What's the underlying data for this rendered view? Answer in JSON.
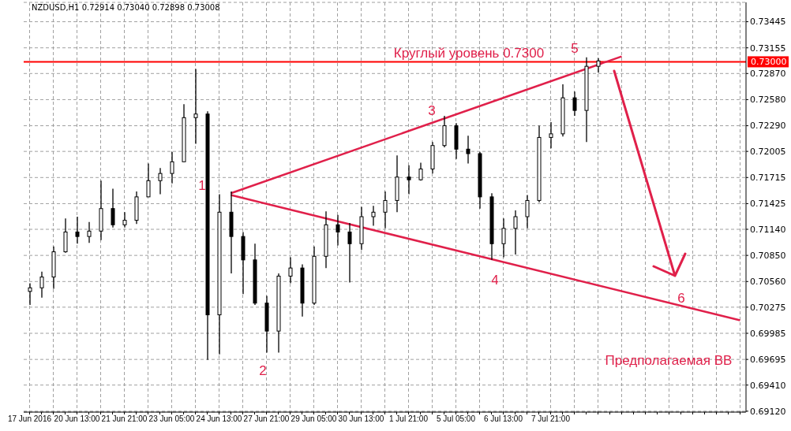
{
  "chart_data": {
    "type": "candlestick",
    "title": "NZDUSD,H1  0.72914 0.73040 0.72898 0.73008",
    "color": "#000000",
    "categories": [
      "17 Jun 2016",
      null,
      null,
      null,
      "20 Jun 13:00",
      null,
      null,
      null,
      "21 Jun 21:00",
      null,
      null,
      null,
      "23 Jun 05:00",
      null,
      null,
      null,
      "24 Jun 13:00",
      null,
      null,
      null,
      "27 Jun 21:00",
      null,
      null,
      null,
      "29 Jun 05:00",
      null,
      null,
      null,
      "30 Jun 13:00",
      null,
      null,
      null,
      "1 Jul 21:00",
      null,
      null,
      null,
      "5 Jul 05:00",
      null,
      null,
      null,
      "6 Jul 13:00",
      null,
      null,
      null,
      "7 Jul 21:00",
      null,
      null,
      null,
      null,
      null,
      null,
      null,
      null,
      null,
      null,
      null,
      null,
      null,
      null,
      null,
      null
    ],
    "ohlc": [
      [
        0.7045,
        0.7054,
        0.703,
        0.7049
      ],
      [
        0.7049,
        0.7067,
        0.7038,
        0.7061
      ],
      [
        0.7061,
        0.7095,
        0.7048,
        0.7089
      ],
      [
        0.7089,
        0.7126,
        0.7088,
        0.7111
      ],
      [
        0.7111,
        0.7128,
        0.7098,
        0.7106
      ],
      [
        0.7106,
        0.7122,
        0.7099,
        0.7112
      ],
      [
        0.7112,
        0.7168,
        0.7102,
        0.7137
      ],
      [
        0.7137,
        0.7159,
        0.7116,
        0.7119
      ],
      [
        0.7119,
        0.7133,
        0.7116,
        0.7124
      ],
      [
        0.7124,
        0.7156,
        0.712,
        0.715
      ],
      [
        0.715,
        0.7187,
        0.715,
        0.7168
      ],
      [
        0.7168,
        0.7182,
        0.7153,
        0.7176
      ],
      [
        0.7176,
        0.72,
        0.7165,
        0.7189
      ],
      [
        0.7189,
        0.7253,
        0.7189,
        0.7238
      ],
      [
        0.7238,
        0.7292,
        0.7209,
        0.7242
      ],
      [
        0.7242,
        0.7245,
        0.6969,
        0.7019
      ],
      [
        0.7019,
        0.7153,
        0.6975,
        0.7133
      ],
      [
        0.7133,
        0.7156,
        0.7065,
        0.7106
      ],
      [
        0.7106,
        0.7111,
        0.7042,
        0.708
      ],
      [
        0.708,
        0.7098,
        0.703,
        0.7032
      ],
      [
        0.7032,
        0.704,
        0.6977,
        0.7001
      ],
      [
        0.7001,
        0.7065,
        0.6977,
        0.7062
      ],
      [
        0.7062,
        0.7083,
        0.7054,
        0.7071
      ],
      [
        0.7071,
        0.7075,
        0.7017,
        0.7032
      ],
      [
        0.7032,
        0.7095,
        0.703,
        0.7084
      ],
      [
        0.7084,
        0.7134,
        0.7071,
        0.7119
      ],
      [
        0.7119,
        0.713,
        0.7096,
        0.7111
      ],
      [
        0.7111,
        0.7121,
        0.7055,
        0.7098
      ],
      [
        0.7098,
        0.7139,
        0.7091,
        0.7128
      ],
      [
        0.7128,
        0.714,
        0.7118,
        0.7133
      ],
      [
        0.7133,
        0.7156,
        0.7115,
        0.7146
      ],
      [
        0.7146,
        0.7196,
        0.7133,
        0.7172
      ],
      [
        0.7172,
        0.7185,
        0.7153,
        0.7169
      ],
      [
        0.7169,
        0.7188,
        0.7168,
        0.7181
      ],
      [
        0.7181,
        0.7211,
        0.7176,
        0.7207
      ],
      [
        0.7207,
        0.724,
        0.7205,
        0.7229
      ],
      [
        0.7229,
        0.7232,
        0.7192,
        0.7203
      ],
      [
        0.7203,
        0.7218,
        0.7187,
        0.7198
      ],
      [
        0.7198,
        0.72,
        0.7137,
        0.715
      ],
      [
        0.715,
        0.7154,
        0.708,
        0.7098
      ],
      [
        0.7098,
        0.7126,
        0.7083,
        0.7115
      ],
      [
        0.7115,
        0.7135,
        0.7086,
        0.7128
      ],
      [
        0.7128,
        0.7152,
        0.7115,
        0.7146
      ],
      [
        0.7146,
        0.7229,
        0.7144,
        0.7216
      ],
      [
        0.7216,
        0.7233,
        0.7204,
        0.722
      ],
      [
        0.722,
        0.7275,
        0.7217,
        0.726
      ],
      [
        0.726,
        0.7267,
        0.724,
        0.7246
      ],
      [
        0.7246,
        0.7305,
        0.7211,
        0.7295
      ],
      [
        0.7295,
        0.7304,
        0.7288,
        0.7301
      ],
      null,
      null,
      null,
      null,
      null,
      null,
      null,
      null,
      null,
      null,
      null,
      null
    ],
    "series": [
      {
        "type": "line",
        "color": "#e0204a",
        "values": [
          null,
          null,
          null,
          null,
          null,
          null,
          null,
          null,
          null,
          null,
          null,
          null,
          null,
          null,
          null,
          null,
          null,
          0.7154,
          null,
          null,
          null,
          null,
          null,
          null,
          null,
          null,
          null,
          null,
          null,
          null,
          null,
          null,
          null,
          null,
          null,
          null,
          null,
          null,
          null,
          null,
          null,
          null,
          null,
          null,
          null,
          null,
          null,
          null,
          null,
          null,
          0.7306,
          null,
          null,
          null,
          null,
          null,
          null,
          null,
          null,
          null,
          null
        ]
      },
      {
        "type": "line",
        "color": "#e0204a",
        "values": [
          null,
          null,
          null,
          null,
          null,
          null,
          null,
          null,
          null,
          null,
          null,
          null,
          null,
          null,
          null,
          null,
          null,
          0.7152,
          null,
          null,
          null,
          null,
          null,
          null,
          null,
          null,
          null,
          null,
          null,
          null,
          null,
          null,
          null,
          null,
          null,
          null,
          null,
          null,
          null,
          null,
          null,
          null,
          null,
          null,
          null,
          null,
          null,
          null,
          null,
          null,
          null,
          null,
          null,
          null,
          null,
          null,
          null,
          null,
          null,
          null,
          0.7013
        ]
      }
    ],
    "ylim": [
      0.6911,
      0.7366
    ],
    "yticks": [
      {
        "value": 0.6912,
        "label": "0.69120"
      },
      {
        "value": 0.6941,
        "label": "0.69410"
      },
      {
        "value": 0.69695,
        "label": "0.69695"
      },
      {
        "value": 0.69985,
        "label": "0.69985"
      },
      {
        "value": 0.70275,
        "label": "0.70275"
      },
      {
        "value": 0.7056,
        "label": "0.70560"
      },
      {
        "value": 0.7085,
        "label": "0.70850"
      },
      {
        "value": 0.7114,
        "label": "0.71140"
      },
      {
        "value": 0.71425,
        "label": "0.71425"
      },
      {
        "value": 0.71715,
        "label": "0.71715"
      },
      {
        "value": 0.72005,
        "label": "0.72005"
      },
      {
        "value": 0.7229,
        "label": "0.72290"
      },
      {
        "value": 0.7258,
        "label": "0.72580"
      },
      {
        "value": 0.7287,
        "label": "0.72870"
      },
      {
        "value": 0.73155,
        "label": "0.73155"
      },
      {
        "value": 0.73445,
        "label": "0.73445"
      }
    ],
    "grid": true,
    "ref_lines": [
      {
        "axis": "y",
        "value": 0.73,
        "label": "0.73000",
        "color": "#ff0000"
      }
    ],
    "annotations": [
      "Круглый уровень 0.7300",
      "1",
      "2",
      "3",
      "4",
      "5",
      "6",
      "Предполагаемая ВВ"
    ]
  }
}
